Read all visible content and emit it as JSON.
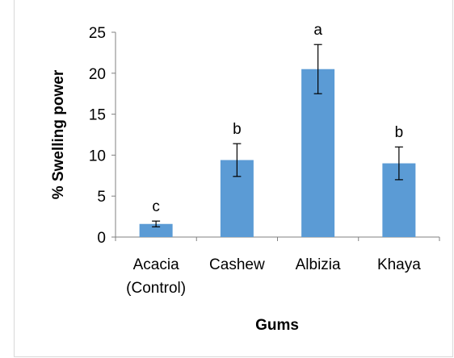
{
  "chart_data": {
    "type": "bar",
    "categories": [
      [
        "Acacia",
        "(Control)"
      ],
      [
        "Cashew"
      ],
      [
        "Albizia"
      ],
      [
        "Khaya"
      ]
    ],
    "values": [
      1.6,
      9.4,
      20.5,
      9.0
    ],
    "errors": [
      0.35,
      2.0,
      3.0,
      2.0
    ],
    "significance": [
      "c",
      "b",
      "a",
      "b"
    ],
    "xlabel": "Gums",
    "ylabel": "% Swelling power",
    "ylim": [
      0,
      25
    ],
    "yticks": [
      0,
      5,
      10,
      15,
      20,
      25
    ],
    "bar_color": "#5b9bd5",
    "grid": false,
    "legend": "none"
  }
}
